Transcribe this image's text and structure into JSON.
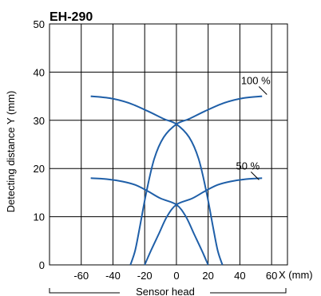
{
  "chart_data": {
    "type": "line",
    "title": "EH-290",
    "xlabel": "X (mm)",
    "ylabel": "Detecting distance Y (mm)",
    "sensor_label": "Sensor head",
    "xlim": [
      -80,
      70
    ],
    "ylim": [
      0,
      50
    ],
    "x_ticks": [
      "-60",
      "-40",
      "-20",
      "0",
      "20",
      "40",
      "60"
    ],
    "y_ticks": [
      "0",
      "10",
      "20",
      "30",
      "40",
      "50"
    ],
    "grid": true,
    "line_color": "#1f5fa8",
    "series": [
      {
        "name": "100 %",
        "group": "100",
        "points": [
          [
            -54,
            35
          ],
          [
            -42,
            34.6
          ],
          [
            -30,
            33.6
          ],
          [
            -18,
            31.9
          ],
          [
            -8,
            30.3
          ],
          [
            0,
            29.2
          ],
          [
            8,
            26.5
          ],
          [
            14,
            22
          ],
          [
            19,
            15
          ],
          [
            23,
            8
          ],
          [
            26,
            3
          ],
          [
            29,
            0
          ]
        ]
      },
      {
        "name": "100 %",
        "group": "100",
        "points": [
          [
            -29,
            0
          ],
          [
            -26,
            3
          ],
          [
            -23,
            8
          ],
          [
            -19,
            15
          ],
          [
            -14,
            22
          ],
          [
            -8,
            26.5
          ],
          [
            0,
            29.2
          ],
          [
            8,
            30.3
          ],
          [
            18,
            31.9
          ],
          [
            30,
            33.6
          ],
          [
            42,
            34.6
          ],
          [
            54,
            35
          ]
        ]
      },
      {
        "name": "50 %",
        "group": "50",
        "points": [
          [
            -54,
            18
          ],
          [
            -44,
            17.8
          ],
          [
            -34,
            17.3
          ],
          [
            -26,
            16.6
          ],
          [
            -18,
            15.3
          ],
          [
            -10,
            13.8
          ],
          [
            0,
            12.5
          ],
          [
            6,
            10
          ],
          [
            11,
            6.5
          ],
          [
            16,
            3
          ],
          [
            20,
            0
          ]
        ]
      },
      {
        "name": "50 %",
        "group": "50",
        "points": [
          [
            -20,
            0
          ],
          [
            -16,
            3
          ],
          [
            -11,
            6.5
          ],
          [
            -6,
            10
          ],
          [
            0,
            12.5
          ],
          [
            10,
            13.8
          ],
          [
            18,
            15.3
          ],
          [
            26,
            16.6
          ],
          [
            34,
            17.3
          ],
          [
            44,
            17.8
          ],
          [
            54,
            18
          ]
        ]
      }
    ],
    "annotations": [
      {
        "text": "100 %",
        "x": 50,
        "y": 37.5
      },
      {
        "text": "50 %",
        "x": 45,
        "y": 19.8
      }
    ]
  }
}
